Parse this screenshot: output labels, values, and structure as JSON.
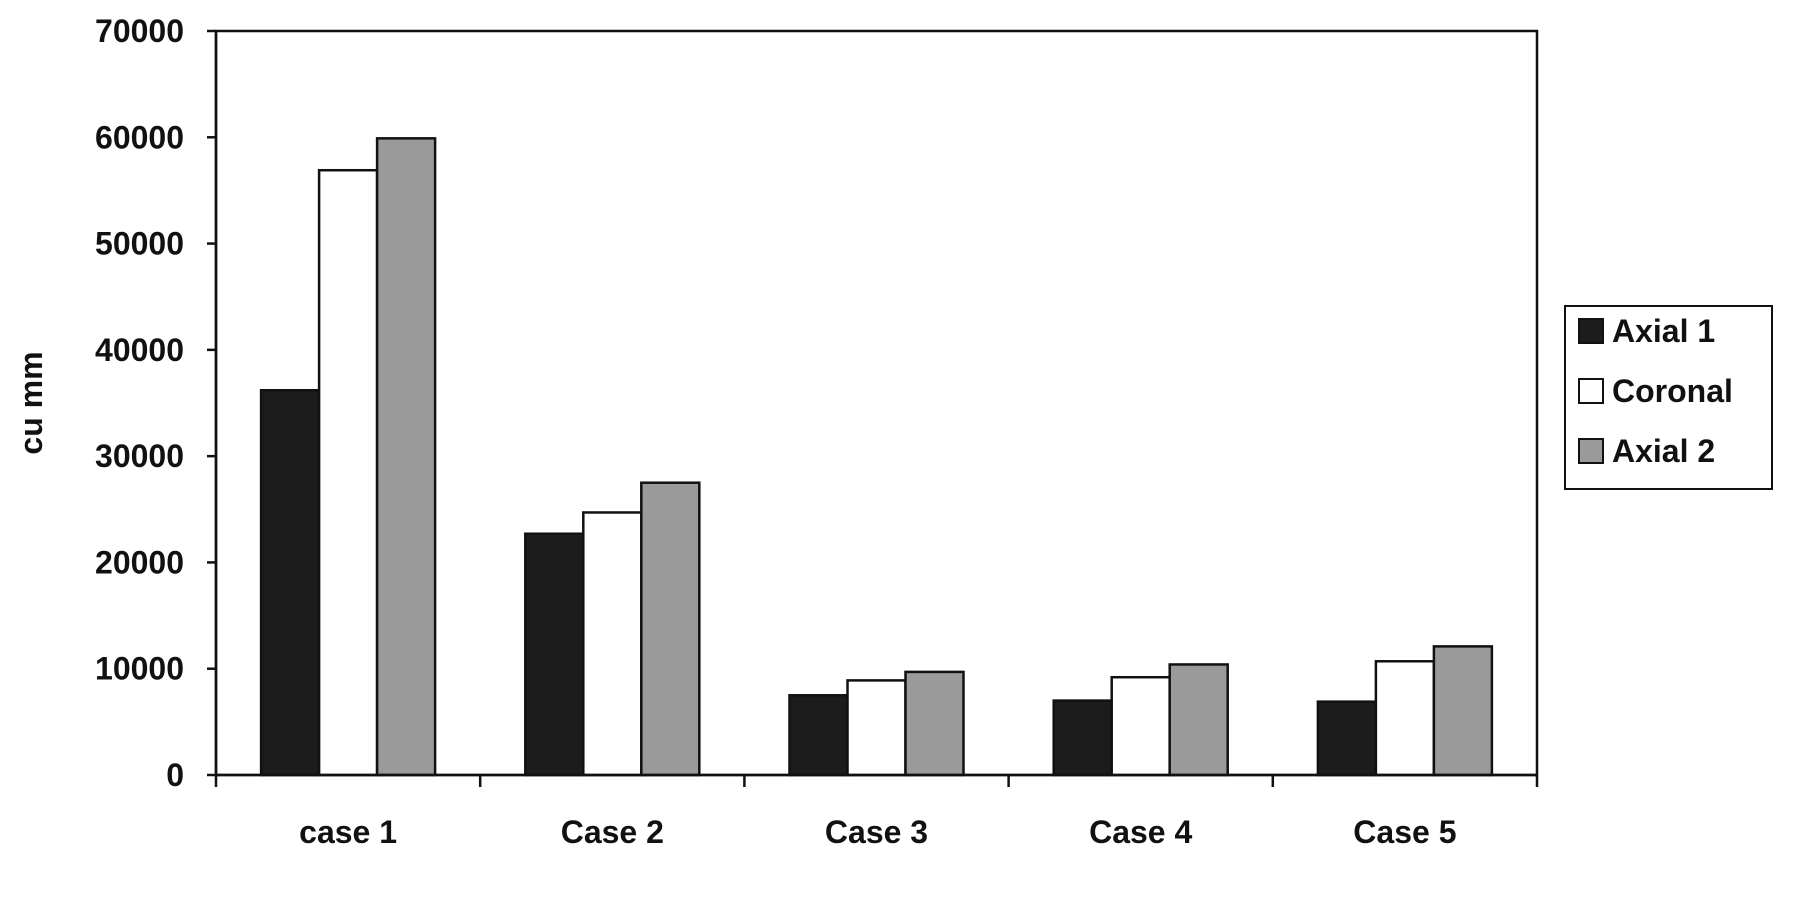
{
  "chart_data": {
    "type": "bar",
    "title": "",
    "xlabel": "",
    "ylabel": "cu mm",
    "categories": [
      "case 1",
      "Case 2",
      "Case 3",
      "Case 4",
      "Case 5"
    ],
    "series": [
      {
        "name": "Axial 1",
        "color": "#1c1c1c",
        "values": [
          36200,
          22700,
          7500,
          7000,
          6900
        ]
      },
      {
        "name": "Coronal",
        "color": "#ffffff",
        "values": [
          56900,
          24700,
          8900,
          9200,
          10700
        ]
      },
      {
        "name": "Axial 2",
        "color": "#9a9a9a",
        "values": [
          59900,
          27500,
          9700,
          10400,
          12100
        ]
      }
    ],
    "ylim": [
      0,
      70000
    ],
    "yticks": [
      "0",
      "10000",
      "20000",
      "30000",
      "40000",
      "50000",
      "60000",
      "70000"
    ],
    "grid": false,
    "legend_position": "right"
  }
}
